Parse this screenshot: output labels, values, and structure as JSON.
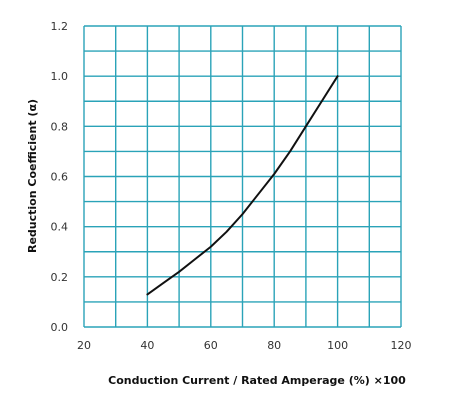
{
  "chart_data": {
    "type": "line",
    "title": "",
    "xlabel": "Conduction Current / Rated Amperage (%) ×100",
    "ylabel": "Reduction Coefficient (α)",
    "xlim": [
      20,
      120
    ],
    "ylim": [
      0.0,
      1.2
    ],
    "x_ticks": [
      20,
      40,
      60,
      80,
      100,
      120
    ],
    "x_tick_labels": [
      "20",
      "40",
      "60",
      "80",
      "100",
      "120"
    ],
    "y_ticks": [
      0.0,
      0.2,
      0.4,
      0.6,
      0.8,
      1.0,
      1.2
    ],
    "y_tick_labels": [
      "0.0",
      "0.2",
      "0.4",
      "0.6",
      "0.8",
      "1.0",
      "1.2"
    ],
    "x_minor_step": 10,
    "y_minor_step": 0.1,
    "grid": true,
    "grid_color": "#2aa3b8",
    "line_color": "#111111",
    "series": [
      {
        "x": [
          40,
          45,
          50,
          55,
          60,
          65,
          70,
          75,
          80,
          85,
          90,
          95,
          100
        ],
        "y": [
          0.13,
          0.175,
          0.22,
          0.27,
          0.32,
          0.38,
          0.45,
          0.53,
          0.61,
          0.7,
          0.8,
          0.9,
          1.0
        ]
      }
    ]
  }
}
